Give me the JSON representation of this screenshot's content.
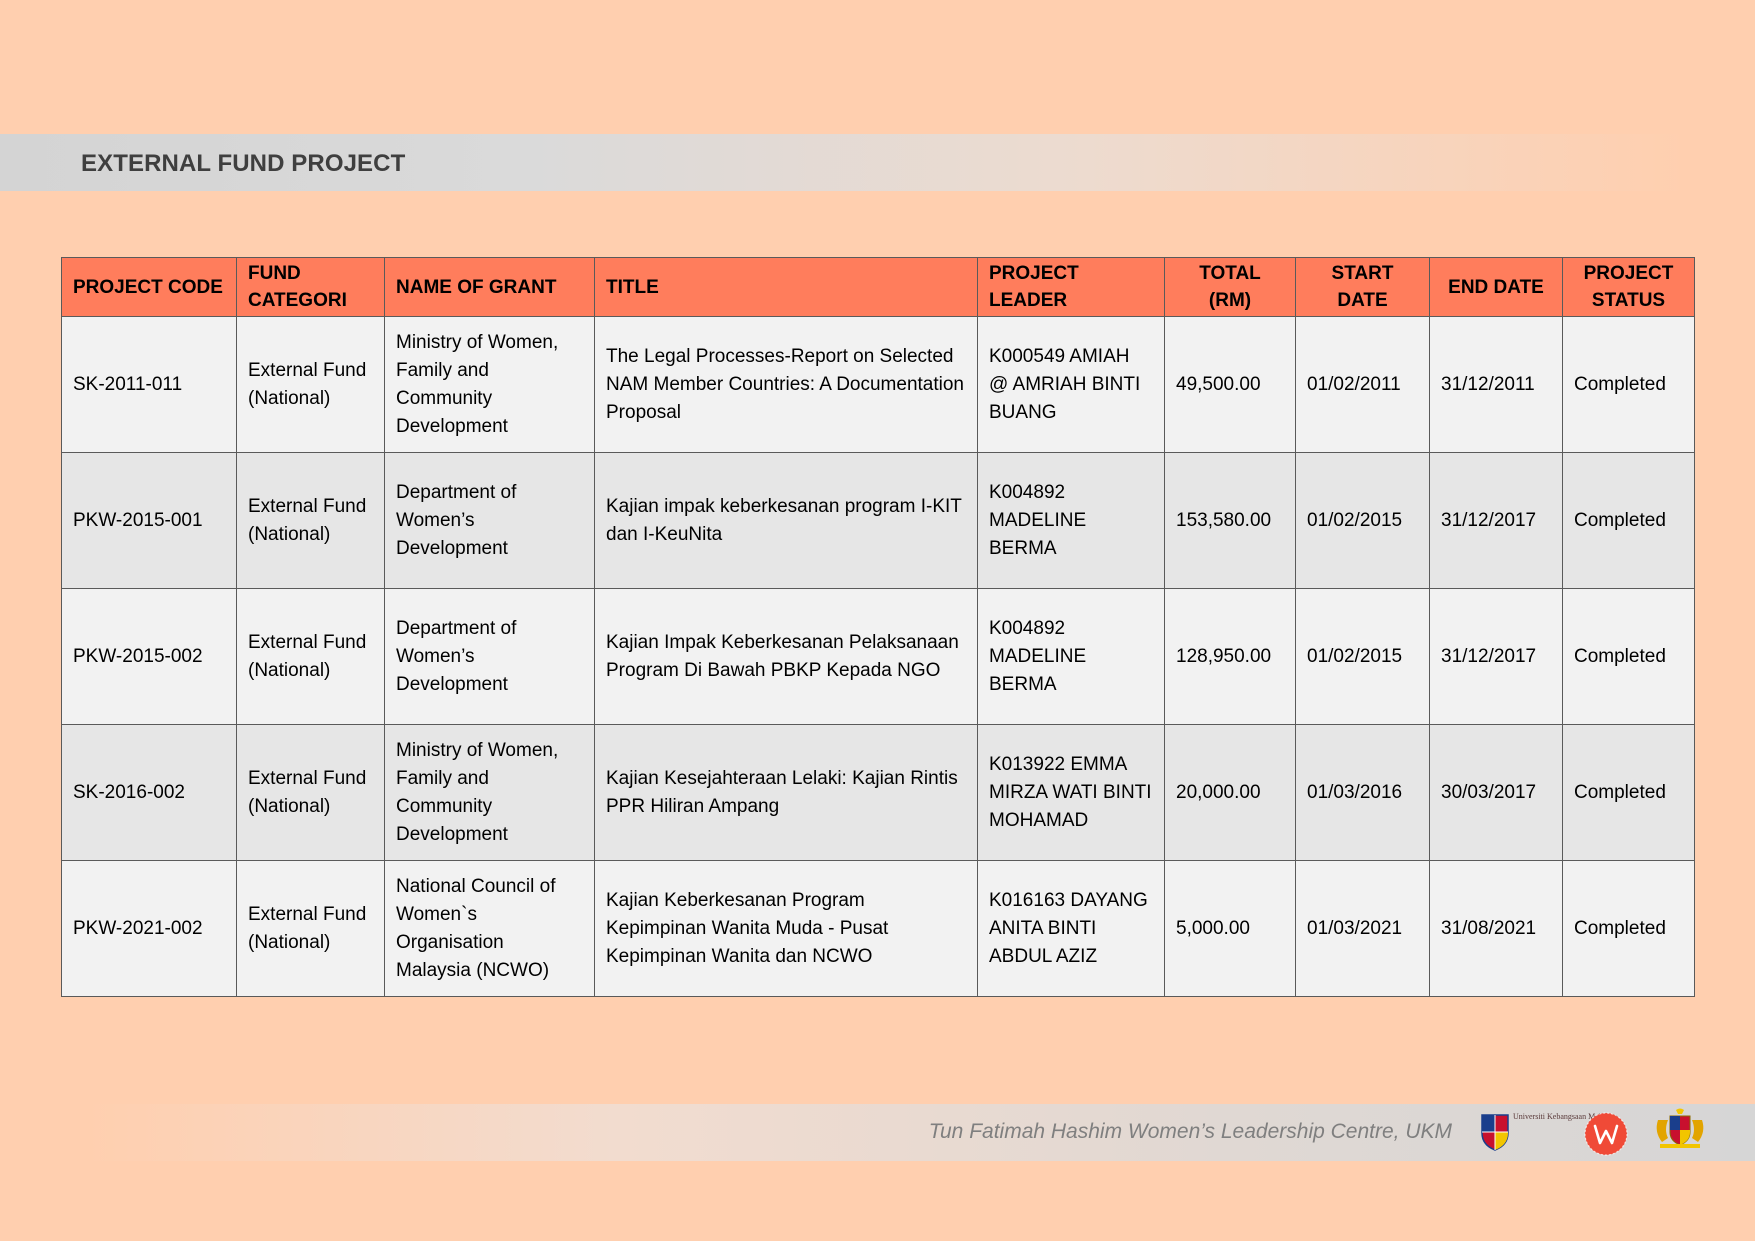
{
  "header": {
    "title": "EXTERNAL FUND PROJECT"
  },
  "table": {
    "columns": [
      "PROJECT CODE",
      "FUND CATEGORI",
      "NAME OF GRANT",
      "TITLE",
      "PROJECT LEADER",
      "TOTAL (RM)",
      "START DATE",
      "END DATE",
      "PROJECT STATUS"
    ],
    "rows": [
      {
        "code": "SK-2011-011",
        "category": "External Fund (National)",
        "grant": "Ministry of Women, Family and Community Development",
        "title": "The Legal Processes-Report on Selected NAM Member Countries: A Documentation Proposal",
        "leader": "K000549 AMIAH @ AMRIAH BINTI BUANG",
        "total": "49,500.00",
        "start": "01/02/2011",
        "end": "31/12/2011",
        "status": "Completed"
      },
      {
        "code": "PKW-2015-001",
        "category": "External Fund (National)",
        "grant": "Department of Women’s Development",
        "title": "Kajian impak keberkesanan program I-KIT dan I-KeuNita",
        "leader": "K004892 MADELINE BERMA",
        "total": "153,580.00",
        "start": "01/02/2015",
        "end": "31/12/2017",
        "status": "Completed"
      },
      {
        "code": "PKW-2015-002",
        "category": "External Fund (National)",
        "grant": "Department of Women’s Development",
        "title": "Kajian Impak Keberkesanan Pelaksanaan Program Di Bawah PBKP Kepada NGO",
        "leader": "K004892 MADELINE BERMA",
        "total": "128,950.00",
        "start": "01/02/2015",
        "end": "31/12/2017",
        "status": "Completed"
      },
      {
        "code": "SK-2016-002",
        "category": "External Fund (National)",
        "grant": "Ministry of Women, Family and Community Development",
        "title": "Kajian Kesejahteraan Lelaki: Kajian Rintis PPR Hiliran Ampang",
        "leader": "K013922 EMMA MIRZA WATI BINTI MOHAMAD",
        "total": "20,000.00",
        "start": "01/03/2016",
        "end": "30/03/2017",
        "status": "Completed"
      },
      {
        "code": "PKW-2021-002",
        "category": "External Fund (National)",
        "grant": "National Council of Women`s Organisation Malaysia (NCWO)",
        "title": "Kajian Keberkesanan Program Kepimpinan Wanita Muda - Pusat Kepimpinan Wanita dan NCWO",
        "leader": "K016163 DAYANG ANITA BINTI ABDUL AZIZ",
        "total": "5,000.00",
        "start": "01/03/2021",
        "end": "31/08/2021",
        "status": "Completed"
      }
    ]
  },
  "footer": {
    "text": "Tun Fatimah Hashim Women’s Leadership Centre, UKM",
    "logos": [
      {
        "icon": "ukm-logo-icon",
        "text": "Universiti Kebangsaan Malaysia"
      },
      {
        "icon": "women-leadership-centre-logo-icon"
      },
      {
        "icon": "malaysia-coat-of-arms-icon"
      }
    ]
  },
  "colors": {
    "page_background": "#FFCFAF",
    "table_header": "#FF7D5C",
    "row_light": "#F2F2F2",
    "row_dark": "#E6E6E6",
    "border": "#5A5A5A",
    "title_text": "#3F3F3F",
    "footer_text": "#7F7F7F"
  }
}
